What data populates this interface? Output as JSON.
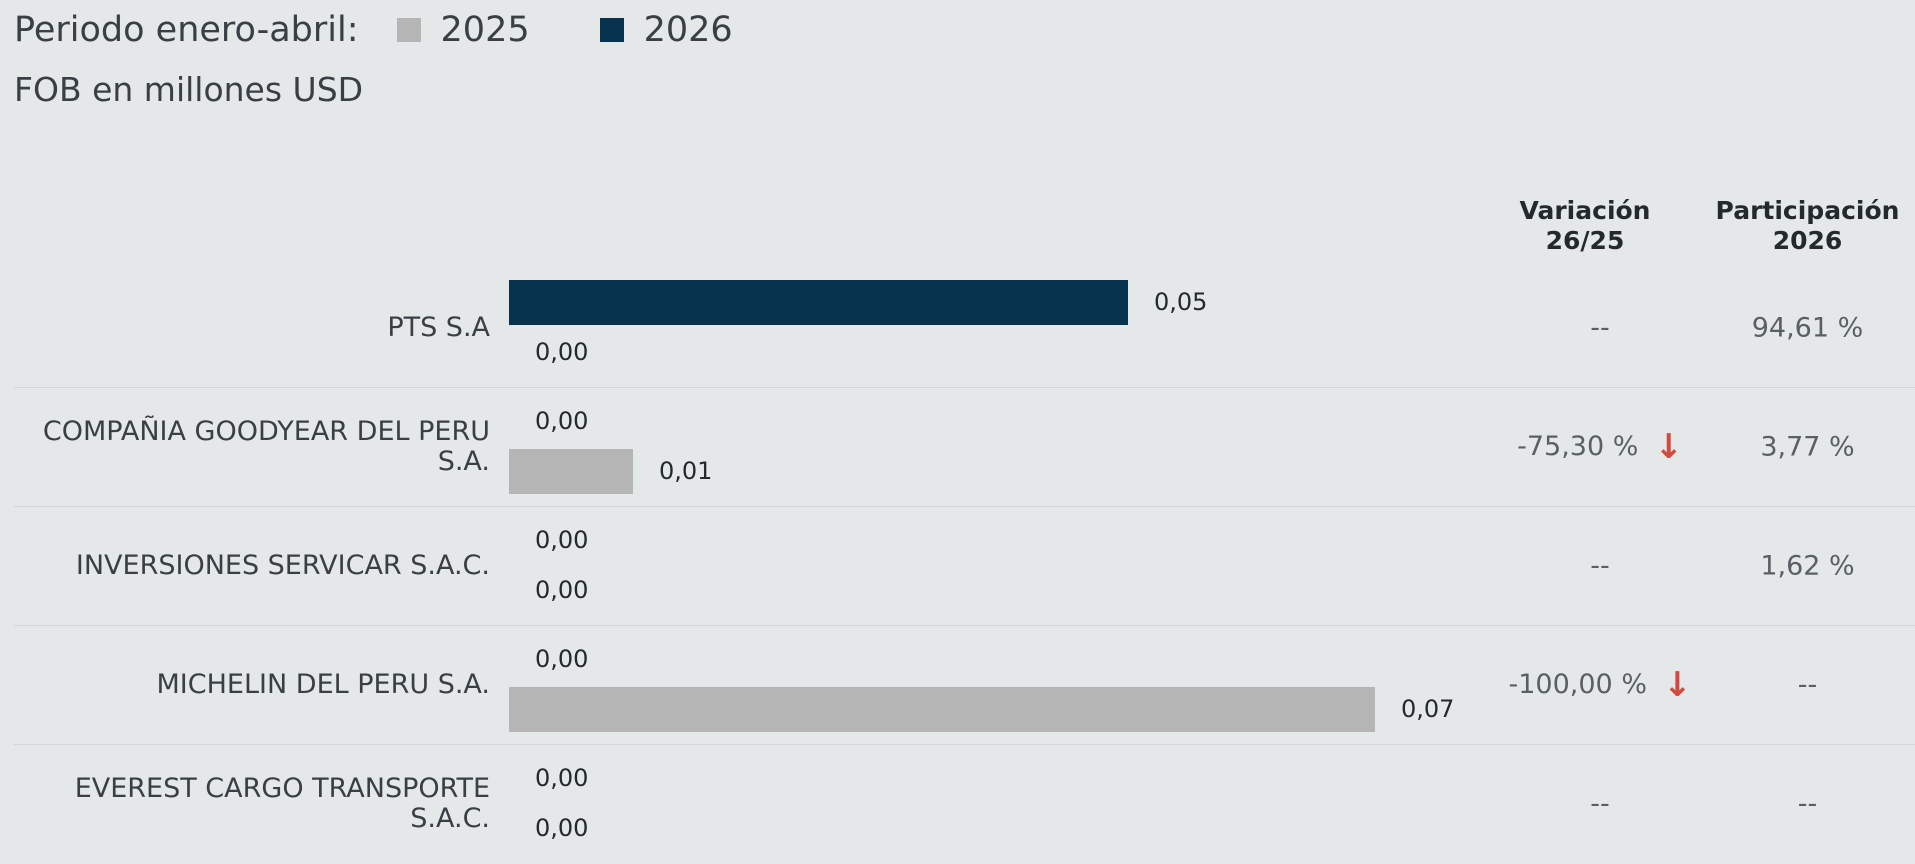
{
  "legend": {
    "period_label": "Periodo enero-abril:",
    "series": [
      {
        "name": "2025",
        "color": "#b5b5b5"
      },
      {
        "name": "2026",
        "color": "#08334f"
      }
    ]
  },
  "subtitle": "FOB en millones USD",
  "columns": {
    "variation": [
      "Variación",
      "26/25"
    ],
    "share": [
      "Participación",
      "2026"
    ]
  },
  "chart_data": {
    "type": "bar",
    "orientation": "horizontal",
    "unit": "millones USD",
    "xlim": [
      0,
      0.07
    ],
    "categories": [
      "PTS S.A",
      "COMPAÑIA GOODYEAR DEL PERU S.A.",
      "INVERSIONES SERVICAR S.A.C.",
      "MICHELIN DEL PERU S.A.",
      "EVEREST CARGO TRANSPORTE S.A.C."
    ],
    "series": [
      {
        "name": "2026",
        "values": [
          0.05,
          0.0,
          0.0,
          0.0,
          0.0
        ],
        "labels": [
          "0,05",
          "0,00",
          "0,00",
          "0,00",
          "0,00"
        ]
      },
      {
        "name": "2025",
        "values": [
          0.0,
          0.01,
          0.0,
          0.07,
          0.0
        ],
        "labels": [
          "0,00",
          "0,01",
          "0,00",
          "0,07",
          "0,00"
        ]
      }
    ],
    "variation_26_25": [
      "--",
      "-75,30 %",
      "--",
      "-100,00 %",
      "--"
    ],
    "variation_trend": [
      "none",
      "down",
      "none",
      "down",
      "none"
    ],
    "share_2026": [
      "94,61 %",
      "3,77 %",
      "1,62 %",
      "--",
      "--"
    ]
  },
  "icons": {
    "down_arrow": "arrow-down-icon"
  }
}
